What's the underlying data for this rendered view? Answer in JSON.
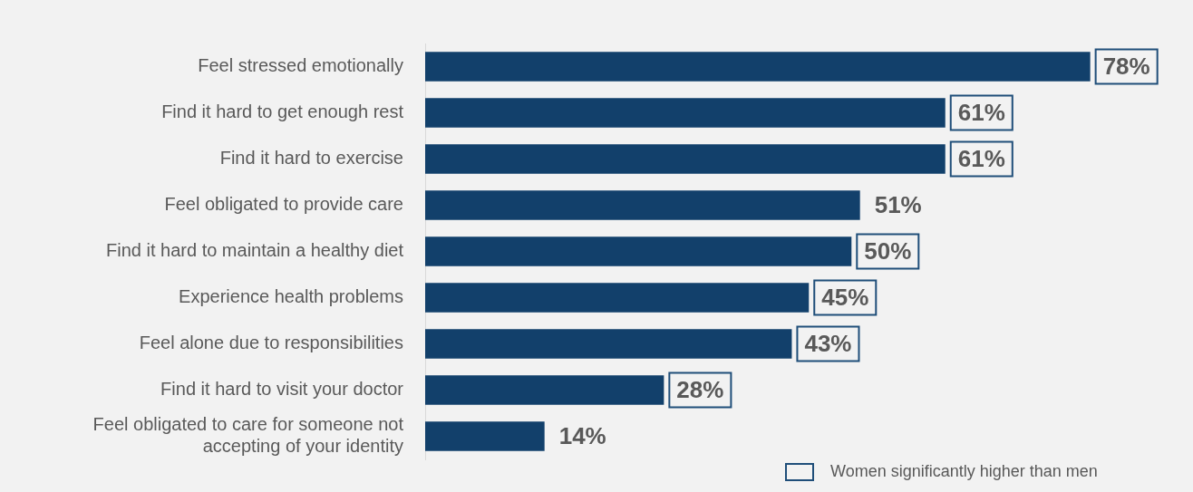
{
  "chart_data": {
    "type": "bar",
    "orientation": "horizontal",
    "categories": [
      "Feel stressed emotionally",
      "Find it hard to get enough rest",
      "Find it hard to exercise",
      "Feel obligated to provide care",
      "Find it hard to maintain a healthy diet",
      "Experience health problems",
      "Feel alone due to responsibilities",
      "Find it hard to visit your doctor",
      "Feel obligated to care for someone not accepting of your identity"
    ],
    "values": [
      78,
      61,
      61,
      51,
      50,
      45,
      43,
      28,
      14
    ],
    "color": "#12406b",
    "value_labels": [
      null,
      null,
      null,
      "51%",
      null,
      null,
      null,
      null,
      "14%"
    ],
    "annotations": [
      {
        "text": "78%",
        "x": 78,
        "y": "Feel stressed emotionally"
      },
      {
        "text": "61%",
        "x": 61,
        "y": "Find it hard to get enough rest"
      },
      {
        "text": "61%",
        "x": 61,
        "y": "Find it hard to exercise"
      },
      {
        "text": "50%",
        "x": 50,
        "y": "Find it hard to maintain a healthy diet"
      },
      {
        "text": "45%",
        "x": 45,
        "y": "Experience health problems"
      },
      {
        "text": "43%",
        "x": 43,
        "y": "Feel alone due to responsibilities"
      },
      {
        "text": "28%",
        "x": 28,
        "y": "Find it hard to visit your doctor"
      },
      "Women significantly higher than men"
    ],
    "grid": false,
    "legend": false
  }
}
